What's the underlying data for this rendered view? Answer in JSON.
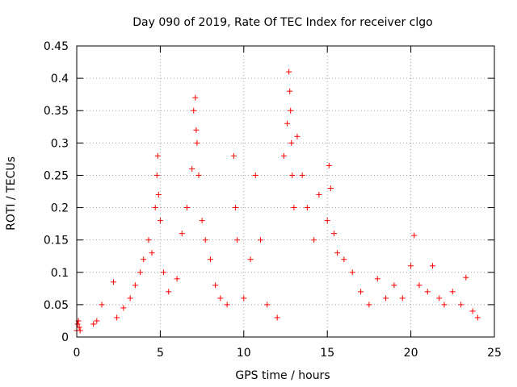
{
  "chart_data": {
    "type": "scatter",
    "title": "Day 090 of 2019, Rate Of TEC Index for receiver clgo",
    "xlabel": "GPS time / hours",
    "ylabel": "ROTI / TECUs",
    "xlim": [
      0,
      25
    ],
    "ylim": [
      0,
      0.45
    ],
    "xticks": [
      0,
      5,
      10,
      15,
      20,
      25
    ],
    "yticks": [
      0,
      0.05,
      0.1,
      0.15,
      0.2,
      0.25,
      0.3,
      0.35,
      0.4,
      0.45
    ],
    "xtick_labels": [
      "0",
      "5",
      "10",
      "15",
      "20",
      "25"
    ],
    "ytick_labels": [
      "0",
      "0.05",
      "0.1",
      "0.15",
      "0.2",
      "0.25",
      "0.3",
      "0.35",
      "0.4",
      "0.45"
    ],
    "grid": true,
    "marker": "+",
    "marker_color": "#ff0000",
    "series": [
      {
        "name": "ROTI",
        "x": [
          0.0,
          0.05,
          0.1,
          0.15,
          0.2,
          1.0,
          1.2,
          1.5,
          2.2,
          2.4,
          2.8,
          3.2,
          3.5,
          3.8,
          4.0,
          4.3,
          4.5,
          4.7,
          4.8,
          4.85,
          4.9,
          5.0,
          5.2,
          5.5,
          6.0,
          6.3,
          6.6,
          6.9,
          7.0,
          7.1,
          7.15,
          7.2,
          7.3,
          7.5,
          7.7,
          8.0,
          8.3,
          8.6,
          9.0,
          9.4,
          9.5,
          9.6,
          10.0,
          10.4,
          10.7,
          11.0,
          11.4,
          12.0,
          12.4,
          12.6,
          12.7,
          12.75,
          12.8,
          12.85,
          12.9,
          13.0,
          13.2,
          13.5,
          13.8,
          14.2,
          14.5,
          15.0,
          15.1,
          15.2,
          15.4,
          15.6,
          16.0,
          16.5,
          17.0,
          17.5,
          18.0,
          18.5,
          19.0,
          19.5,
          20.0,
          20.2,
          20.5,
          21.0,
          21.3,
          21.7,
          22.0,
          22.5,
          23.0,
          23.3,
          23.7,
          24.0
        ],
        "y": [
          0.01,
          0.02,
          0.025,
          0.015,
          0.01,
          0.02,
          0.025,
          0.05,
          0.085,
          0.03,
          0.045,
          0.06,
          0.08,
          0.1,
          0.12,
          0.15,
          0.13,
          0.2,
          0.25,
          0.28,
          0.22,
          0.18,
          0.1,
          0.07,
          0.09,
          0.16,
          0.2,
          0.26,
          0.35,
          0.37,
          0.32,
          0.3,
          0.25,
          0.18,
          0.15,
          0.12,
          0.08,
          0.06,
          0.05,
          0.28,
          0.2,
          0.15,
          0.06,
          0.12,
          0.25,
          0.15,
          0.05,
          0.03,
          0.28,
          0.33,
          0.41,
          0.38,
          0.35,
          0.3,
          0.25,
          0.2,
          0.31,
          0.25,
          0.2,
          0.15,
          0.22,
          0.18,
          0.265,
          0.23,
          0.16,
          0.13,
          0.12,
          0.1,
          0.07,
          0.05,
          0.09,
          0.06,
          0.08,
          0.06,
          0.11,
          0.157,
          0.08,
          0.07,
          0.11,
          0.06,
          0.05,
          0.07,
          0.05,
          0.092,
          0.04,
          0.03
        ]
      }
    ]
  }
}
